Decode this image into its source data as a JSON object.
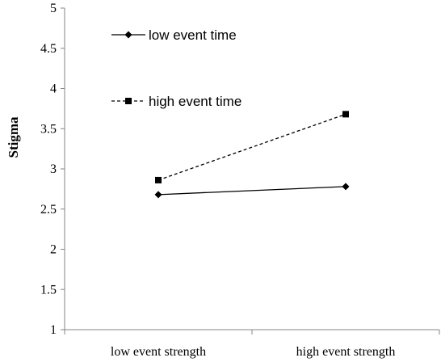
{
  "chart_data": {
    "type": "line",
    "title": "",
    "xlabel": "",
    "ylabel": "Stigma",
    "categories": [
      "low event strength",
      "high event strength"
    ],
    "ylim": [
      1,
      5
    ],
    "yticks": [
      "1",
      "1.5",
      "2",
      "2.5",
      "3",
      "3.5",
      "4",
      "4.5",
      "5"
    ],
    "grid": false,
    "legend_position": "top-left",
    "series": [
      {
        "name": "low event time",
        "values": [
          2.68,
          2.78
        ],
        "line_style": "solid",
        "marker": "diamond",
        "color": "#000000"
      },
      {
        "name": "high event time",
        "values": [
          2.86,
          3.68
        ],
        "line_style": "dashed",
        "marker": "square",
        "color": "#000000"
      }
    ]
  }
}
